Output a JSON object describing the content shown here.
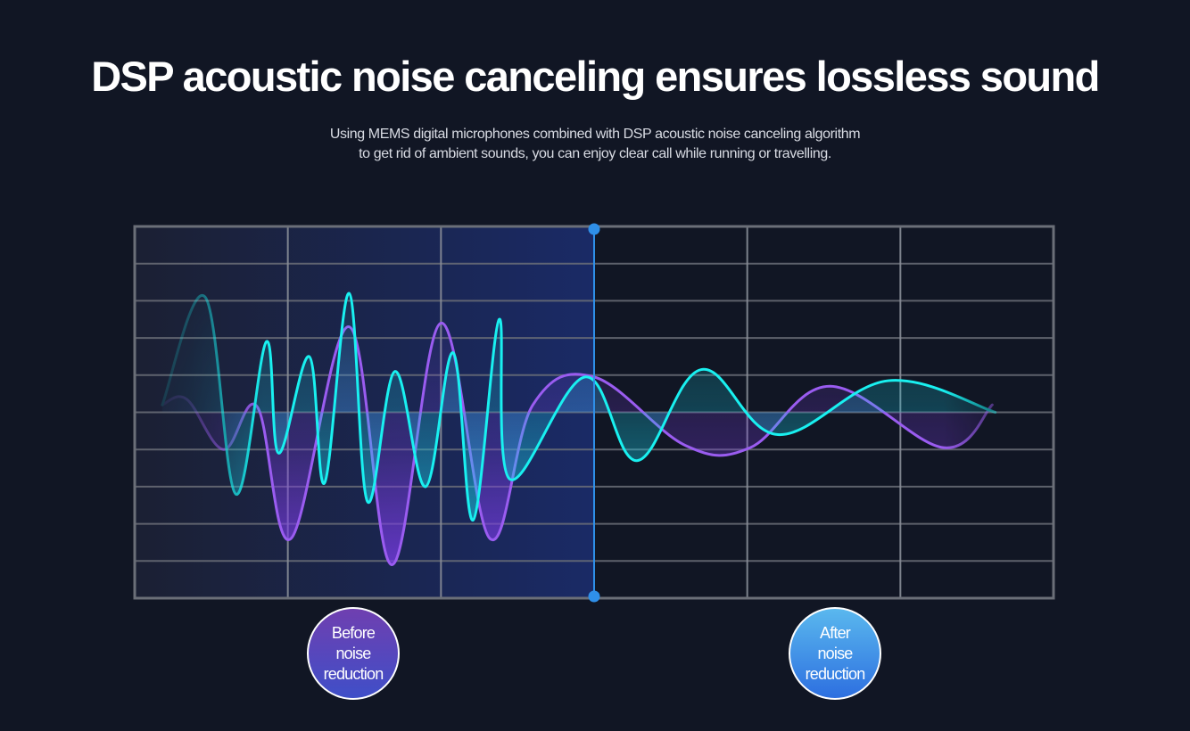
{
  "header": {
    "title": "DSP acoustic noise canceling ensures lossless sound",
    "subtitle_lines": [
      "Using MEMS digital microphones combined with DSP acoustic noise canceling algorithm",
      "to get rid of ambient sounds, you can enjoy clear call while running or travelling."
    ]
  },
  "colors": {
    "background": "#111624",
    "grid": "#6b6f78",
    "divider": "#2f8fe8",
    "cyan_wave": "#19f0f0",
    "purple_wave": "#9a5cf0",
    "before_region": "#1c2a5e"
  },
  "labels": {
    "before": [
      "Before",
      "noise",
      "reduction"
    ],
    "after": [
      "After",
      "noise",
      "reduction"
    ]
  },
  "chart_data": {
    "type": "line",
    "title": "Waveform before vs after noise reduction",
    "xlabel": "",
    "ylabel": "",
    "grid": true,
    "grid_columns": 6,
    "grid_rows": 10,
    "xlim": [
      0,
      6
    ],
    "ylim": [
      -5,
      5
    ],
    "divider_x": 3,
    "regions": [
      {
        "name": "Before noise reduction",
        "x_range": [
          0,
          3
        ]
      },
      {
        "name": "After noise reduction",
        "x_range": [
          3,
          6
        ]
      }
    ],
    "series": [
      {
        "name": "cyan",
        "points": [
          [
            0.18,
            0.2
          ],
          [
            0.46,
            3.1
          ],
          [
            0.66,
            -2.2
          ],
          [
            0.86,
            1.9
          ],
          [
            0.94,
            -1.1
          ],
          [
            1.14,
            1.5
          ],
          [
            1.24,
            -1.9
          ],
          [
            1.4,
            3.2
          ],
          [
            1.52,
            -2.4
          ],
          [
            1.7,
            1.1
          ],
          [
            1.9,
            -2.0
          ],
          [
            2.08,
            1.6
          ],
          [
            2.21,
            -2.9
          ],
          [
            2.38,
            2.5
          ],
          [
            2.45,
            -1.8
          ],
          [
            2.94,
            0.95
          ],
          [
            3.28,
            -1.3
          ],
          [
            3.7,
            1.15
          ],
          [
            4.2,
            -0.6
          ],
          [
            4.92,
            0.85
          ],
          [
            5.62,
            0.0
          ]
        ]
      },
      {
        "name": "purple",
        "points": [
          [
            0.18,
            0.2
          ],
          [
            0.34,
            0.35
          ],
          [
            0.58,
            -1.0
          ],
          [
            0.8,
            0.15
          ],
          [
            1.02,
            -3.4
          ],
          [
            1.4,
            2.3
          ],
          [
            1.68,
            -4.1
          ],
          [
            2.0,
            2.4
          ],
          [
            2.32,
            -3.4
          ],
          [
            2.6,
            0.2
          ],
          [
            3.0,
            0.95
          ],
          [
            3.6,
            -0.9
          ],
          [
            4.02,
            -0.95
          ],
          [
            4.54,
            0.7
          ],
          [
            5.28,
            -0.95
          ],
          [
            5.6,
            0.2
          ]
        ]
      }
    ]
  }
}
